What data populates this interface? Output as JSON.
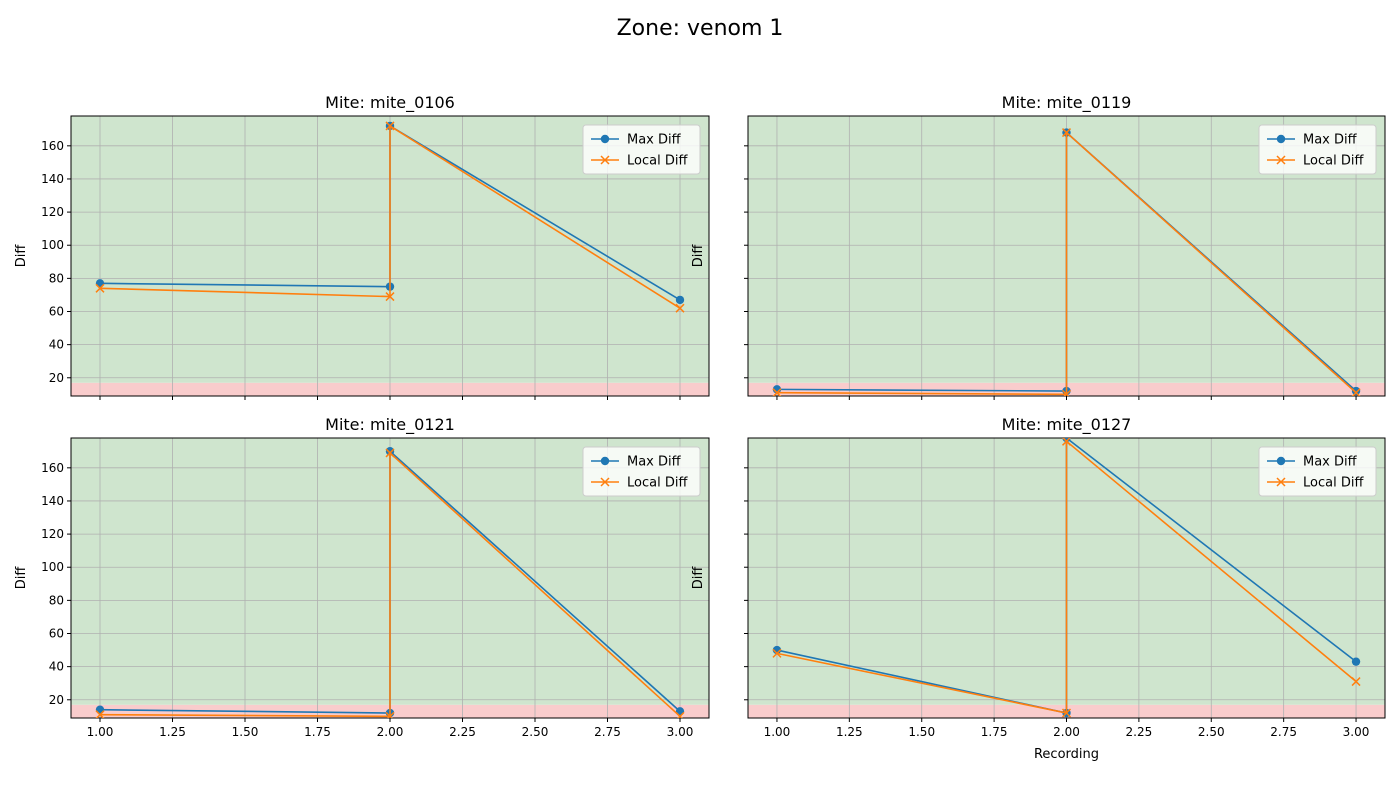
{
  "figure_title": "Zone: venom 1",
  "colors": {
    "max_diff": "#1f77b4",
    "local_diff": "#ff7f0e",
    "band_good": "#cfe5ce",
    "band_bad": "#f9cccc",
    "grid": "#b0b0b0"
  },
  "chart_data": [
    {
      "type": "line",
      "title": "Mite: mite_0106",
      "xlabel": "",
      "ylabel": "Diff",
      "xlim": [
        0.9,
        3.1
      ],
      "ylim": [
        9,
        178
      ],
      "xticks": [
        1.0,
        1.25,
        1.5,
        1.75,
        2.0,
        2.25,
        2.5,
        2.75,
        3.0
      ],
      "xtick_labels": [],
      "yticks": [
        20,
        40,
        60,
        80,
        100,
        120,
        140,
        160
      ],
      "ytick_labels": [
        "20",
        "40",
        "60",
        "80",
        "100",
        "120",
        "140",
        "160"
      ],
      "threshold_bands": [
        {
          "from": 9,
          "to": 17,
          "meaning": "bad"
        },
        {
          "from": 17,
          "to": 178,
          "meaning": "good"
        }
      ],
      "grid": true,
      "legend_position": "top-right",
      "x": [
        1,
        2,
        2,
        3
      ],
      "series": [
        {
          "name": "Max Diff",
          "marker": "o",
          "values": [
            77,
            75,
            172,
            67
          ]
        },
        {
          "name": "Local Diff",
          "marker": "x",
          "values": [
            74,
            69,
            172,
            62
          ]
        }
      ]
    },
    {
      "type": "line",
      "title": "Mite: mite_0119",
      "xlabel": "",
      "ylabel": "Diff",
      "xlim": [
        0.9,
        3.1
      ],
      "ylim": [
        9,
        178
      ],
      "xticks": [
        1.0,
        1.25,
        1.5,
        1.75,
        2.0,
        2.25,
        2.5,
        2.75,
        3.0
      ],
      "xtick_labels": [],
      "yticks": [
        20,
        40,
        60,
        80,
        100,
        120,
        140,
        160
      ],
      "ytick_labels": [],
      "threshold_bands": [
        {
          "from": 9,
          "to": 17,
          "meaning": "bad"
        },
        {
          "from": 17,
          "to": 178,
          "meaning": "good"
        }
      ],
      "grid": true,
      "legend_position": "top-right",
      "x": [
        1,
        2,
        2,
        3
      ],
      "series": [
        {
          "name": "Max Diff",
          "marker": "o",
          "values": [
            13,
            12,
            168,
            12
          ]
        },
        {
          "name": "Local Diff",
          "marker": "x",
          "values": [
            11,
            10,
            168,
            11
          ]
        }
      ]
    },
    {
      "type": "line",
      "title": "Mite: mite_0121",
      "xlabel": "",
      "ylabel": "Diff",
      "xlim": [
        0.9,
        3.1
      ],
      "ylim": [
        9,
        178
      ],
      "xticks": [
        1.0,
        1.25,
        1.5,
        1.75,
        2.0,
        2.25,
        2.5,
        2.75,
        3.0
      ],
      "xtick_labels": [
        "1.00",
        "1.25",
        "1.50",
        "1.75",
        "2.00",
        "2.25",
        "2.50",
        "2.75",
        "3.00"
      ],
      "yticks": [
        20,
        40,
        60,
        80,
        100,
        120,
        140,
        160
      ],
      "ytick_labels": [
        "20",
        "40",
        "60",
        "80",
        "100",
        "120",
        "140",
        "160"
      ],
      "threshold_bands": [
        {
          "from": 9,
          "to": 17,
          "meaning": "bad"
        },
        {
          "from": 17,
          "to": 178,
          "meaning": "good"
        }
      ],
      "grid": true,
      "legend_position": "top-right",
      "x": [
        1,
        2,
        2,
        3
      ],
      "series": [
        {
          "name": "Max Diff",
          "marker": "o",
          "values": [
            14,
            12,
            170,
            13
          ]
        },
        {
          "name": "Local Diff",
          "marker": "x",
          "values": [
            11,
            10,
            169,
            10
          ]
        }
      ]
    },
    {
      "type": "line",
      "title": "Mite: mite_0127",
      "xlabel": "Recording",
      "ylabel": "Diff",
      "xlim": [
        0.9,
        3.1
      ],
      "ylim": [
        9,
        178
      ],
      "xticks": [
        1.0,
        1.25,
        1.5,
        1.75,
        2.0,
        2.25,
        2.5,
        2.75,
        3.0
      ],
      "xtick_labels": [
        "1.00",
        "1.25",
        "1.50",
        "1.75",
        "2.00",
        "2.25",
        "2.50",
        "2.75",
        "3.00"
      ],
      "yticks": [
        20,
        40,
        60,
        80,
        100,
        120,
        140,
        160
      ],
      "ytick_labels": [],
      "threshold_bands": [
        {
          "from": 9,
          "to": 17,
          "meaning": "bad"
        },
        {
          "from": 17,
          "to": 178,
          "meaning": "good"
        }
      ],
      "grid": true,
      "legend_position": "top-right",
      "x": [
        1,
        2,
        2,
        3
      ],
      "series": [
        {
          "name": "Max Diff",
          "marker": "o",
          "values": [
            50,
            12,
            178,
            43
          ]
        },
        {
          "name": "Local Diff",
          "marker": "x",
          "values": [
            48,
            12,
            176,
            31
          ]
        }
      ]
    }
  ]
}
